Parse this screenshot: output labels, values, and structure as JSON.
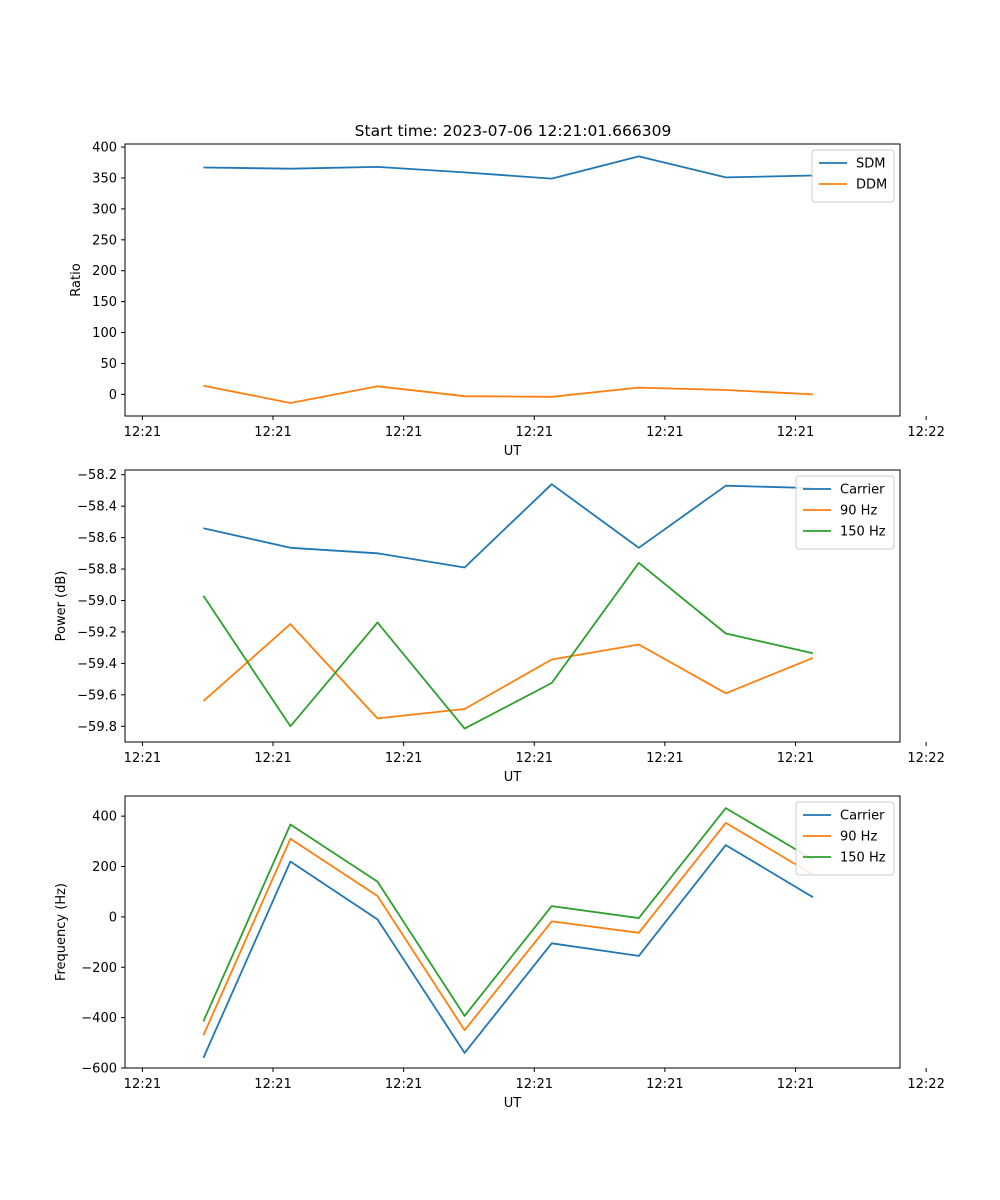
{
  "figure_title": "Start time: 2023-07-06 12:21:01.666309",
  "colors": {
    "blue": "#1f77b4",
    "orange": "#ff7f0e",
    "green": "#2ca02c"
  },
  "chart_data": [
    {
      "type": "line",
      "title": "Start time: 2023-07-06 12:21:01.666309",
      "xlabel": "UT",
      "ylabel": "Ratio",
      "ylim": [
        -35,
        405
      ],
      "yticks": [
        0,
        50,
        100,
        150,
        200,
        250,
        300,
        350,
        400
      ],
      "ytick_labels": [
        "0",
        "50",
        "100",
        "150",
        "200",
        "250",
        "300",
        "350",
        "400"
      ],
      "xlim": [
        -0.6,
        8.3
      ],
      "xticks": [
        -0.4,
        1.1,
        2.6,
        4.1,
        5.6,
        7.1,
        8.6
      ],
      "xtick_labels": [
        "12:21",
        "12:21",
        "12:21",
        "12:21",
        "12:21",
        "12:21",
        "12:22"
      ],
      "x": [
        0.3,
        1.3,
        2.3,
        3.3,
        4.3,
        5.3,
        6.3,
        7.3
      ],
      "legend_position": "upper right",
      "series": [
        {
          "name": "SDM",
          "color": "#1f77b4",
          "values": [
            367,
            365,
            368,
            359,
            349,
            385,
            351,
            354
          ]
        },
        {
          "name": "DDM",
          "color": "#ff7f0e",
          "values": [
            14,
            -14,
            13,
            -3,
            -4,
            11,
            7,
            0
          ]
        }
      ]
    },
    {
      "type": "line",
      "title": "",
      "xlabel": "UT",
      "ylabel": "Power (dB)",
      "ylim": [
        -59.9,
        -58.17
      ],
      "yticks": [
        -59.8,
        -59.6,
        -59.4,
        -59.2,
        -59.0,
        -58.8,
        -58.6,
        -58.4,
        -58.2
      ],
      "ytick_labels": [
        "−59.8",
        "−59.6",
        "−59.4",
        "−59.2",
        "−59.0",
        "−58.8",
        "−58.6",
        "−58.4",
        "−58.2"
      ],
      "xlim": [
        -0.6,
        8.3
      ],
      "xticks": [
        -0.4,
        1.1,
        2.6,
        4.1,
        5.6,
        7.1,
        8.6
      ],
      "xtick_labels": [
        "12:21",
        "12:21",
        "12:21",
        "12:21",
        "12:21",
        "12:21",
        "12:22"
      ],
      "x": [
        0.3,
        1.3,
        2.3,
        3.3,
        4.3,
        5.3,
        6.3,
        7.3
      ],
      "legend_position": "upper right",
      "series": [
        {
          "name": "Carrier",
          "color": "#1f77b4",
          "values": [
            -58.54,
            -58.665,
            -58.7,
            -58.79,
            -58.26,
            -58.665,
            -58.27,
            -58.285
          ]
        },
        {
          "name": "90 Hz",
          "color": "#ff7f0e",
          "values": [
            -59.64,
            -59.15,
            -59.75,
            -59.69,
            -59.375,
            -59.28,
            -59.59,
            -59.365
          ]
        },
        {
          "name": "150 Hz",
          "color": "#2ca02c",
          "values": [
            -58.97,
            -59.8,
            -59.14,
            -59.815,
            -59.525,
            -58.76,
            -59.21,
            -59.335
          ]
        }
      ]
    },
    {
      "type": "line",
      "title": "",
      "xlabel": "UT",
      "ylabel": "Frequency (Hz)",
      "ylim": [
        -600,
        480
      ],
      "yticks": [
        -600,
        -400,
        -200,
        0,
        200,
        400
      ],
      "ytick_labels": [
        "−600",
        "−400",
        "−200",
        "0",
        "200",
        "400"
      ],
      "xlim": [
        -0.6,
        8.3
      ],
      "xticks": [
        -0.4,
        1.1,
        2.6,
        4.1,
        5.6,
        7.1,
        8.6
      ],
      "xtick_labels": [
        "12:21",
        "12:21",
        "12:21",
        "12:21",
        "12:21",
        "12:21",
        "12:22"
      ],
      "x": [
        0.3,
        1.3,
        2.3,
        3.3,
        4.3,
        5.3,
        6.3,
        7.3
      ],
      "legend_position": "upper right",
      "series": [
        {
          "name": "Carrier",
          "color": "#1f77b4",
          "values": [
            -560,
            220,
            -10,
            -540,
            -105,
            -155,
            285,
            78
          ]
        },
        {
          "name": "90 Hz",
          "color": "#ff7f0e",
          "values": [
            -470,
            310,
            83,
            -450,
            -18,
            -63,
            373,
            168
          ]
        },
        {
          "name": "150 Hz",
          "color": "#2ca02c",
          "values": [
            -415,
            367,
            140,
            -393,
            43,
            -5,
            432,
            228
          ]
        }
      ]
    }
  ]
}
